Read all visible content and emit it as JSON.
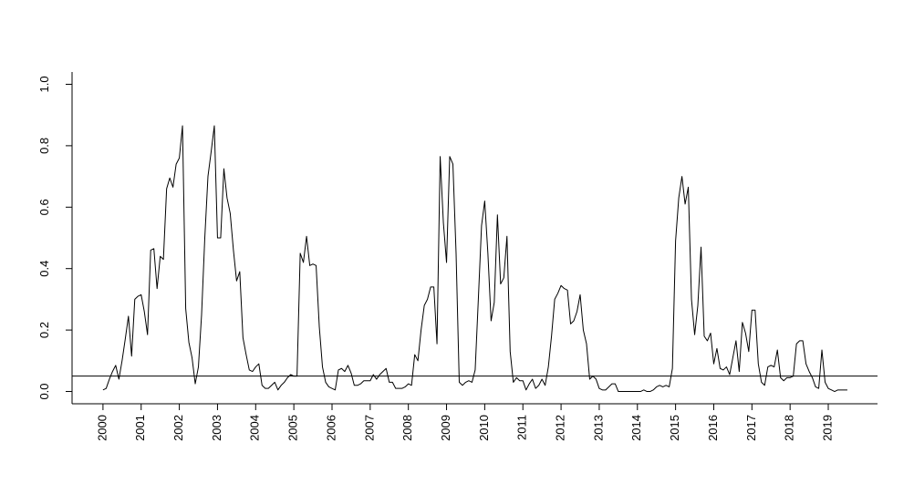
{
  "chart_data": {
    "type": "line",
    "x": [
      2000,
      2000.083,
      2000.167,
      2000.25,
      2000.333,
      2000.417,
      2000.5,
      2000.583,
      2000.667,
      2000.75,
      2000.833,
      2000.917,
      2001,
      2001.083,
      2001.167,
      2001.25,
      2001.333,
      2001.417,
      2001.5,
      2001.583,
      2001.667,
      2001.75,
      2001.833,
      2001.917,
      2002,
      2002.083,
      2002.167,
      2002.25,
      2002.333,
      2002.417,
      2002.5,
      2002.583,
      2002.667,
      2002.75,
      2002.833,
      2002.917,
      2003,
      2003.083,
      2003.167,
      2003.25,
      2003.333,
      2003.417,
      2003.5,
      2003.583,
      2003.667,
      2003.75,
      2003.833,
      2003.917,
      2004,
      2004.083,
      2004.167,
      2004.25,
      2004.333,
      2004.417,
      2004.5,
      2004.583,
      2004.667,
      2004.75,
      2004.833,
      2004.917,
      2005,
      2005.083,
      2005.167,
      2005.25,
      2005.333,
      2005.417,
      2005.5,
      2005.583,
      2005.667,
      2005.75,
      2005.833,
      2005.917,
      2006,
      2006.083,
      2006.167,
      2006.25,
      2006.333,
      2006.417,
      2006.5,
      2006.583,
      2006.667,
      2006.75,
      2006.833,
      2006.917,
      2007,
      2007.083,
      2007.167,
      2007.25,
      2007.333,
      2007.417,
      2007.5,
      2007.583,
      2007.667,
      2007.75,
      2007.833,
      2007.917,
      2008,
      2008.083,
      2008.167,
      2008.25,
      2008.333,
      2008.417,
      2008.5,
      2008.583,
      2008.667,
      2008.75,
      2008.833,
      2008.917,
      2009,
      2009.083,
      2009.167,
      2009.25,
      2009.333,
      2009.417,
      2009.5,
      2009.583,
      2009.667,
      2009.75,
      2009.833,
      2009.917,
      2010,
      2010.083,
      2010.167,
      2010.25,
      2010.333,
      2010.417,
      2010.5,
      2010.583,
      2010.667,
      2010.75,
      2010.833,
      2010.917,
      2011,
      2011.083,
      2011.167,
      2011.25,
      2011.333,
      2011.417,
      2011.5,
      2011.583,
      2011.667,
      2011.75,
      2011.833,
      2011.917,
      2012,
      2012.083,
      2012.167,
      2012.25,
      2012.333,
      2012.417,
      2012.5,
      2012.583,
      2012.667,
      2012.75,
      2012.833,
      2012.917,
      2013,
      2013.083,
      2013.167,
      2013.25,
      2013.333,
      2013.417,
      2013.5,
      2013.583,
      2013.667,
      2013.75,
      2013.833,
      2013.917,
      2014,
      2014.083,
      2014.167,
      2014.25,
      2014.333,
      2014.417,
      2014.5,
      2014.583,
      2014.667,
      2014.75,
      2014.833,
      2014.917,
      2015,
      2015.083,
      2015.167,
      2015.25,
      2015.333,
      2015.417,
      2015.5,
      2015.583,
      2015.667,
      2015.75,
      2015.833,
      2015.917,
      2016,
      2016.083,
      2016.167,
      2016.25,
      2016.333,
      2016.417,
      2016.5,
      2016.583,
      2016.667,
      2016.75,
      2016.833,
      2016.917,
      2017,
      2017.083,
      2017.167,
      2017.25,
      2017.333,
      2017.417,
      2017.5,
      2017.583,
      2017.667,
      2017.75,
      2017.833,
      2017.917,
      2018,
      2018.083,
      2018.167,
      2018.25,
      2018.333,
      2018.417,
      2018.5,
      2018.583,
      2018.667,
      2018.75,
      2018.833,
      2018.917,
      2019,
      2019.083,
      2019.167,
      2019.25,
      2019.333,
      2019.417,
      2019.5
    ],
    "values": [
      0.005,
      0.01,
      0.04,
      0.065,
      0.085,
      0.04,
      0.1,
      0.17,
      0.245,
      0.115,
      0.3,
      0.31,
      0.315,
      0.26,
      0.185,
      0.46,
      0.465,
      0.335,
      0.44,
      0.43,
      0.66,
      0.695,
      0.665,
      0.74,
      0.76,
      0.865,
      0.27,
      0.16,
      0.11,
      0.025,
      0.08,
      0.25,
      0.5,
      0.7,
      0.78,
      0.865,
      0.5,
      0.5,
      0.725,
      0.63,
      0.58,
      0.46,
      0.36,
      0.39,
      0.175,
      0.12,
      0.07,
      0.065,
      0.08,
      0.09,
      0.02,
      0.01,
      0.01,
      0.02,
      0.03,
      0.005,
      0.02,
      0.03,
      0.045,
      0.055,
      0.05,
      0.05,
      0.45,
      0.42,
      0.505,
      0.41,
      0.415,
      0.41,
      0.21,
      0.08,
      0.03,
      0.015,
      0.01,
      0.005,
      0.07,
      0.075,
      0.065,
      0.085,
      0.06,
      0.02,
      0.02,
      0.025,
      0.035,
      0.035,
      0.035,
      0.055,
      0.04,
      0.055,
      0.065,
      0.075,
      0.03,
      0.03,
      0.01,
      0.01,
      0.01,
      0.015,
      0.025,
      0.02,
      0.12,
      0.1,
      0.2,
      0.28,
      0.3,
      0.34,
      0.34,
      0.155,
      0.765,
      0.55,
      0.42,
      0.765,
      0.74,
      0.45,
      0.03,
      0.02,
      0.03,
      0.035,
      0.03,
      0.07,
      0.3,
      0.54,
      0.62,
      0.45,
      0.23,
      0.29,
      0.575,
      0.35,
      0.37,
      0.505,
      0.13,
      0.03,
      0.045,
      0.035,
      0.035,
      0.005,
      0.025,
      0.04,
      0.01,
      0.02,
      0.04,
      0.02,
      0.08,
      0.18,
      0.3,
      0.32,
      0.345,
      0.335,
      0.33,
      0.22,
      0.23,
      0.26,
      0.315,
      0.2,
      0.155,
      0.04,
      0.05,
      0.04,
      0.01,
      0.005,
      0.005,
      0.015,
      0.025,
      0.025,
      0,
      0,
      0,
      0,
      0,
      0,
      0,
      0,
      0.005,
      0,
      0,
      0.005,
      0.015,
      0.02,
      0.015,
      0.02,
      0.015,
      0.075,
      0.49,
      0.63,
      0.7,
      0.61,
      0.665,
      0.3,
      0.185,
      0.28,
      0.47,
      0.18,
      0.165,
      0.19,
      0.09,
      0.14,
      0.075,
      0.07,
      0.08,
      0.055,
      0.11,
      0.165,
      0.065,
      0.225,
      0.19,
      0.13,
      0.265,
      0.265,
      0.09,
      0.03,
      0.02,
      0.08,
      0.085,
      0.08,
      0.135,
      0.045,
      0.035,
      0.045,
      0.045,
      0.05,
      0.155,
      0.165,
      0.165,
      0.09,
      0.065,
      0.045,
      0.015,
      0.01,
      0.135,
      0.03,
      0.01,
      0.005,
      0,
      0.005,
      0.005,
      0.005,
      0.005
    ],
    "color": "#000000",
    "hline": 0.05,
    "xlim": [
      1999.19,
      2020.29
    ],
    "xticks": [
      2000,
      2001,
      2002,
      2003,
      2004,
      2005,
      2006,
      2007,
      2008,
      2009,
      2010,
      2011,
      2012,
      2013,
      2014,
      2015,
      2016,
      2017,
      2018,
      2019
    ],
    "ylim": [
      -0.04,
      1.04
    ],
    "yticks": [
      {
        "value": 0,
        "label": "0.0"
      },
      0.2,
      0.4,
      0.6,
      0.8,
      {
        "value": 1,
        "label": "1.0"
      }
    ]
  }
}
